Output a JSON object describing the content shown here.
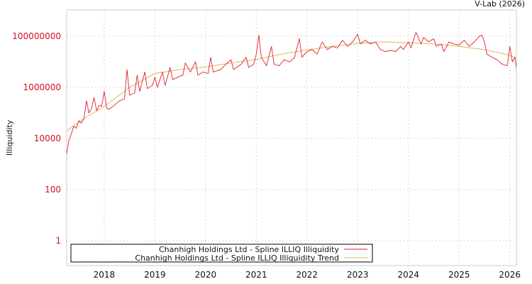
{
  "chart_data": {
    "type": "line",
    "title": "",
    "credit": "V-Lab (2026)",
    "xlabel": "",
    "ylabel": "Illiquidity",
    "yscale": "log",
    "xlim": [
      2017.26,
      2026.13
    ],
    "ylim": [
      0.107,
      1070000000
    ],
    "grid": true,
    "legend_position": "bottom",
    "x_ticks": [
      2018,
      2019,
      2020,
      2021,
      2022,
      2023,
      2024,
      2025,
      2026
    ],
    "x_tick_labels": [
      "2018",
      "2019",
      "2020",
      "2021",
      "2022",
      "2023",
      "2024",
      "2025",
      "2026"
    ],
    "y_ticks": [
      1,
      100,
      10000,
      1000000,
      100000000
    ],
    "y_tick_labels": [
      "1",
      "100",
      "10000",
      "1000000",
      "100000000"
    ],
    "colors": {
      "illiquidity": "#e0202c",
      "trend": "#d8b860",
      "ytick": "#d0101e"
    },
    "series": [
      {
        "name": "Chanhigh Holdings Ltd - Spline ILLIQ Illiquidity",
        "x": [
          2017.26,
          2017.3,
          2017.35,
          2017.4,
          2017.45,
          2017.5,
          2017.55,
          2017.6,
          2017.65,
          2017.7,
          2017.75,
          2017.8,
          2017.85,
          2017.9,
          2017.95,
          2018.0,
          2018.05,
          2018.1,
          2018.2,
          2018.3,
          2018.4,
          2018.45,
          2018.5,
          2018.6,
          2018.65,
          2018.7,
          2018.8,
          2018.85,
          2018.95,
          2019.0,
          2019.05,
          2019.15,
          2019.2,
          2019.3,
          2019.35,
          2019.45,
          2019.55,
          2019.6,
          2019.7,
          2019.8,
          2019.85,
          2019.95,
          2020.05,
          2020.1,
          2020.15,
          2020.3,
          2020.4,
          2020.5,
          2020.55,
          2020.7,
          2020.8,
          2020.85,
          2020.95,
          2021.0,
          2021.05,
          2021.1,
          2021.2,
          2021.3,
          2021.35,
          2021.45,
          2021.55,
          2021.65,
          2021.75,
          2021.85,
          2021.9,
          2022.0,
          2022.1,
          2022.2,
          2022.3,
          2022.4,
          2022.5,
          2022.6,
          2022.7,
          2022.8,
          2022.9,
          2023.0,
          2023.05,
          2023.15,
          2023.25,
          2023.35,
          2023.45,
          2023.55,
          2023.65,
          2023.75,
          2023.85,
          2023.9,
          2024.0,
          2024.05,
          2024.15,
          2024.25,
          2024.3,
          2024.4,
          2024.5,
          2024.55,
          2024.65,
          2024.7,
          2024.8,
          2024.9,
          2025.0,
          2025.1,
          2025.2,
          2025.3,
          2025.4,
          2025.45,
          2025.5,
          2025.55,
          2025.65,
          2025.75,
          2025.85,
          2025.95,
          2026.0,
          2026.05,
          2026.1,
          2026.13
        ],
        "y": [
          2500,
          8000,
          15000,
          30000,
          25000,
          50000,
          40000,
          60000,
          300000,
          100000,
          150000,
          400000,
          120000,
          200000,
          180000,
          700000,
          150000,
          140000,
          200000,
          300000,
          350000,
          5000000,
          500000,
          600000,
          3000000,
          700000,
          4000000,
          900000,
          1200000,
          2500000,
          1000000,
          4000000,
          1200000,
          6000000,
          2000000,
          2500000,
          3000000,
          9000000,
          4000000,
          10000000,
          3000000,
          4000000,
          3500000,
          15000000,
          4000000,
          5000000,
          8000000,
          12000000,
          5000000,
          8000000,
          15000000,
          6000000,
          8000000,
          20000000,
          110000000,
          15000000,
          7000000,
          40000000,
          8000000,
          7000000,
          12000000,
          10000000,
          14000000,
          80000000,
          15000000,
          25000000,
          30000000,
          20000000,
          60000000,
          30000000,
          40000000,
          35000000,
          70000000,
          40000000,
          60000000,
          120000000,
          50000000,
          70000000,
          50000000,
          60000000,
          30000000,
          25000000,
          28000000,
          25000000,
          40000000,
          30000000,
          60000000,
          35000000,
          140000000,
          50000000,
          90000000,
          60000000,
          80000000,
          40000000,
          50000000,
          25000000,
          60000000,
          50000000,
          45000000,
          70000000,
          40000000,
          60000000,
          100000000,
          110000000,
          60000000,
          20000000,
          15000000,
          12000000,
          8000000,
          7000000,
          40000000,
          10000000,
          15000000,
          6000000
        ]
      },
      {
        "name": "Chanhigh Holdings Ltd - Spline ILLIQ Illiquidity Trend",
        "x": [
          2017.26,
          2017.6,
          2018.0,
          2018.5,
          2019.0,
          2019.5,
          2020.0,
          2020.5,
          2021.0,
          2021.5,
          2022.0,
          2022.5,
          2023.0,
          2023.5,
          2024.0,
          2024.5,
          2025.0,
          2025.5,
          2026.0,
          2026.13
        ],
        "y": [
          20000,
          60000,
          180000,
          1000000,
          3500000,
          5000000,
          6300000,
          9000000,
          12500000,
          20000000,
          29000000,
          40000000,
          52000000,
          60000000,
          56000000,
          50000000,
          40000000,
          30000000,
          18000000,
          14000000
        ]
      }
    ]
  }
}
